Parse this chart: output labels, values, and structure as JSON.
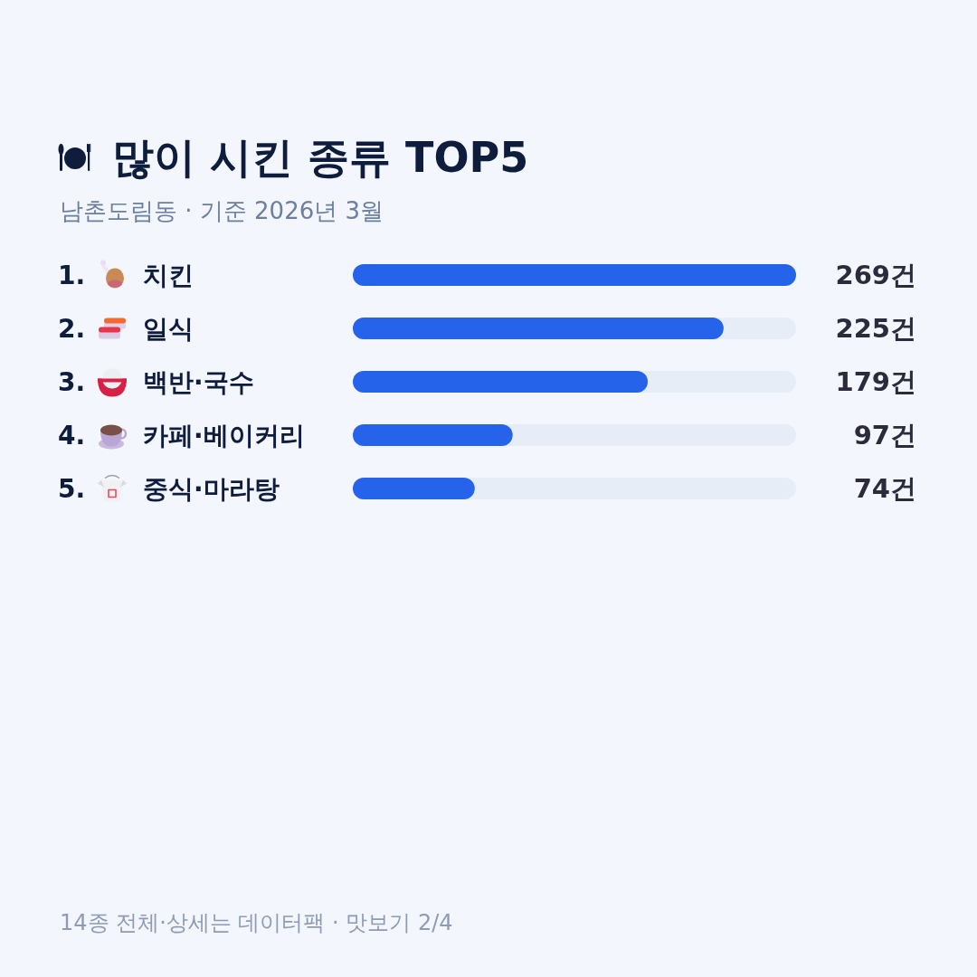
{
  "chart_data": {
    "type": "bar",
    "orientation": "horizontal",
    "title": "많이 시킨 종류 TOP5",
    "subtitle": "남촌도림동 · 기준 2026년 3월",
    "categories": [
      "1. 치킨",
      "2. 일식",
      "3. 백반·국수",
      "4. 카페·베이커리",
      "5. 중식·마라탕"
    ],
    "values": [
      269,
      225,
      179,
      97,
      74
    ],
    "value_labels": [
      "269건",
      "225건",
      "179건",
      "97건",
      "74건"
    ],
    "color": "#2563eb",
    "xlim": [
      0,
      269
    ],
    "tick_labels": "y",
    "annotations": [
      "14종 전체·상세는 데이터팩 · 맛보기 2/4"
    ]
  }
}
